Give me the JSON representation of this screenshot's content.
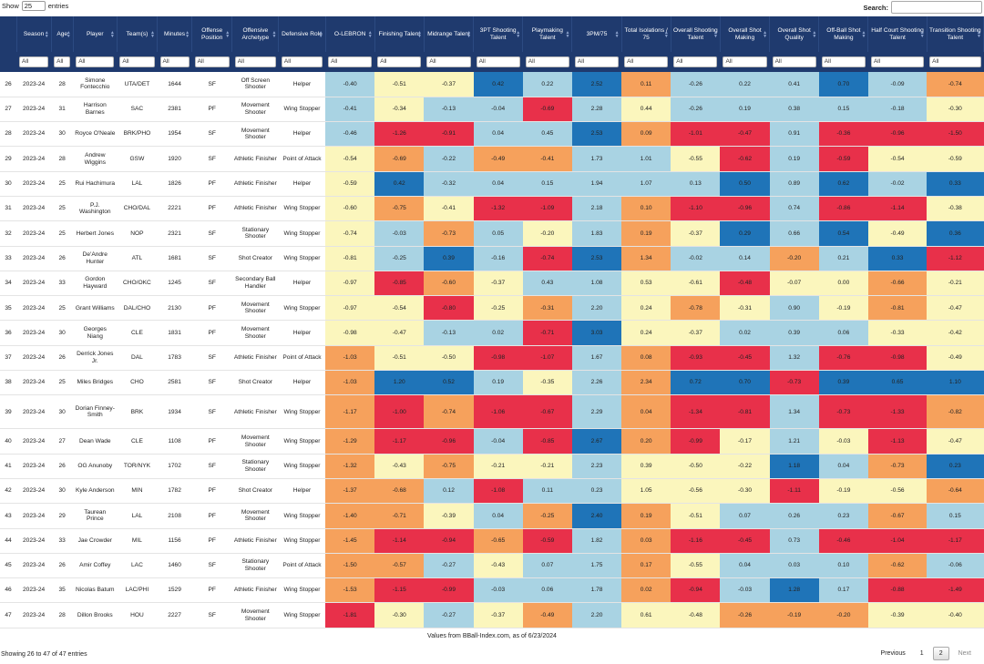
{
  "controls": {
    "show_label": "Show",
    "page_size": "25",
    "entries_label": "entries",
    "search_label": "Search:",
    "search_value": ""
  },
  "columns": [
    "Season",
    "Age",
    "Player",
    "Team(s)",
    "Minutes",
    "Offense Position",
    "Offensive Archetype",
    "Defensive Role",
    "O-LEBRON",
    "Finishing Talent",
    "Midrange Talent",
    "3PT Shooting Talent",
    "Playmaking Talent",
    "3PM/75",
    "Total Isolations / 75",
    "Overall Shooting Talent",
    "Overall Shot Making",
    "Overall Shot Quality",
    "Off-Ball Shot Making",
    "Half Court Shooting Talent",
    "Transition Shooting Talent"
  ],
  "filter_value": "All",
  "rows": [
    {
      "idx": "26",
      "season": "2023-24",
      "age": "28",
      "player": "Simone Fontecchio",
      "team": "UTA/DET",
      "minutes": "1644",
      "pos": "SF",
      "arch": "Off Screen Shooter",
      "role": "Helper",
      "stats": [
        "-0.40",
        "-0.51",
        "-0.37",
        "0.42",
        "0.22",
        "2.52",
        "0.11",
        "-0.26",
        "0.22",
        "0.41",
        "0.70",
        "-0.09",
        "-0.74"
      ]
    },
    {
      "idx": "27",
      "season": "2023-24",
      "age": "31",
      "player": "Harrison Barnes",
      "team": "SAC",
      "minutes": "2381",
      "pos": "PF",
      "arch": "Movement Shooter",
      "role": "Wing Stopper",
      "stats": [
        "-0.41",
        "-0.34",
        "-0.13",
        "-0.04",
        "-0.69",
        "2.28",
        "0.44",
        "-0.26",
        "0.19",
        "0.38",
        "0.15",
        "-0.18",
        "-0.30"
      ]
    },
    {
      "idx": "28",
      "season": "2023-24",
      "age": "30",
      "player": "Royce O'Neale",
      "team": "BRK/PHO",
      "minutes": "1954",
      "pos": "SF",
      "arch": "Movement Shooter",
      "role": "Helper",
      "stats": [
        "-0.46",
        "-1.26",
        "-0.91",
        "0.04",
        "0.45",
        "2.53",
        "0.09",
        "-1.01",
        "-0.47",
        "0.91",
        "-0.36",
        "-0.96",
        "-1.50"
      ]
    },
    {
      "idx": "29",
      "season": "2023-24",
      "age": "28",
      "player": "Andrew Wiggins",
      "team": "GSW",
      "minutes": "1920",
      "pos": "SF",
      "arch": "Athletic Finisher",
      "role": "Point of Attack",
      "stats": [
        "-0.54",
        "-0.69",
        "-0.22",
        "-0.49",
        "-0.41",
        "1.73",
        "1.01",
        "-0.55",
        "-0.62",
        "0.19",
        "-0.59",
        "-0.54",
        "-0.59"
      ]
    },
    {
      "idx": "30",
      "season": "2023-24",
      "age": "25",
      "player": "Rui Hachimura",
      "team": "LAL",
      "minutes": "1826",
      "pos": "PF",
      "arch": "Athletic Finisher",
      "role": "Helper",
      "stats": [
        "-0.59",
        "0.42",
        "-0.32",
        "0.04",
        "0.15",
        "1.94",
        "1.07",
        "0.13",
        "0.50",
        "0.89",
        "0.62",
        "-0.02",
        "0.33"
      ]
    },
    {
      "idx": "31",
      "season": "2023-24",
      "age": "25",
      "player": "P.J. Washington",
      "team": "CHO/DAL",
      "minutes": "2221",
      "pos": "PF",
      "arch": "Athletic Finisher",
      "role": "Wing Stopper",
      "stats": [
        "-0.60",
        "-0.75",
        "-0.41",
        "-1.32",
        "-1.09",
        "2.18",
        "0.10",
        "-1.10",
        "-0.96",
        "0.74",
        "-0.86",
        "-1.14",
        "-0.38"
      ]
    },
    {
      "idx": "32",
      "season": "2023-24",
      "age": "25",
      "player": "Herbert Jones",
      "team": "NOP",
      "minutes": "2321",
      "pos": "SF",
      "arch": "Stationary Shooter",
      "role": "Wing Stopper",
      "stats": [
        "-0.74",
        "-0.03",
        "-0.73",
        "0.05",
        "-0.20",
        "1.83",
        "0.19",
        "-0.37",
        "0.29",
        "0.66",
        "0.54",
        "-0.49",
        "0.36"
      ]
    },
    {
      "idx": "33",
      "season": "2023-24",
      "age": "26",
      "player": "De'Andre Hunter",
      "team": "ATL",
      "minutes": "1681",
      "pos": "SF",
      "arch": "Shot Creator",
      "role": "Wing Stopper",
      "stats": [
        "-0.81",
        "-0.25",
        "0.39",
        "-0.16",
        "-0.74",
        "2.53",
        "1.34",
        "-0.02",
        "0.14",
        "-0.20",
        "0.21",
        "0.33",
        "-1.12"
      ]
    },
    {
      "idx": "34",
      "season": "2023-24",
      "age": "33",
      "player": "Gordon Hayward",
      "team": "CHO/OKC",
      "minutes": "1245",
      "pos": "SF",
      "arch": "Secondary Ball Handler",
      "role": "Helper",
      "stats": [
        "-0.97",
        "-0.85",
        "-0.60",
        "-0.37",
        "0.43",
        "1.08",
        "0.53",
        "-0.61",
        "-0.48",
        "-0.07",
        "0.00",
        "-0.66",
        "-0.21"
      ]
    },
    {
      "idx": "35",
      "season": "2023-24",
      "age": "25",
      "player": "Grant Williams",
      "team": "DAL/CHO",
      "minutes": "2130",
      "pos": "PF",
      "arch": "Movement Shooter",
      "role": "Wing Stopper",
      "stats": [
        "-0.97",
        "-0.54",
        "-0.80",
        "-0.25",
        "-0.31",
        "2.20",
        "0.24",
        "-0.78",
        "-0.31",
        "0.90",
        "-0.19",
        "-0.81",
        "-0.47"
      ]
    },
    {
      "idx": "36",
      "season": "2023-24",
      "age": "30",
      "player": "Georges Niang",
      "team": "CLE",
      "minutes": "1831",
      "pos": "PF",
      "arch": "Movement Shooter",
      "role": "Helper",
      "stats": [
        "-0.98",
        "-0.47",
        "-0.13",
        "0.02",
        "-0.71",
        "3.03",
        "0.24",
        "-0.37",
        "0.02",
        "0.39",
        "0.06",
        "-0.33",
        "-0.42"
      ]
    },
    {
      "idx": "37",
      "season": "2023-24",
      "age": "26",
      "player": "Derrick Jones Jr.",
      "team": "DAL",
      "minutes": "1783",
      "pos": "SF",
      "arch": "Athletic Finisher",
      "role": "Point of Attack",
      "stats": [
        "-1.03",
        "-0.51",
        "-0.50",
        "-0.98",
        "-1.07",
        "1.67",
        "0.08",
        "-0.93",
        "-0.45",
        "1.32",
        "-0.76",
        "-0.98",
        "-0.49"
      ]
    },
    {
      "idx": "38",
      "season": "2023-24",
      "age": "25",
      "player": "Miles Bridges",
      "team": "CHO",
      "minutes": "2581",
      "pos": "SF",
      "arch": "Shot Creator",
      "role": "Helper",
      "stats": [
        "-1.03",
        "1.20",
        "0.52",
        "0.19",
        "-0.35",
        "2.26",
        "2.34",
        "0.72",
        "0.70",
        "-0.73",
        "0.39",
        "0.65",
        "1.10"
      ]
    },
    {
      "idx": "39",
      "season": "2023-24",
      "age": "30",
      "player": "Dorian Finney-Smith",
      "team": "BRK",
      "minutes": "1934",
      "pos": "SF",
      "arch": "Athletic Finisher",
      "role": "Wing Stopper",
      "tall": true,
      "stats": [
        "-1.17",
        "-1.00",
        "-0.74",
        "-1.06",
        "-0.67",
        "2.29",
        "0.04",
        "-1.34",
        "-0.81",
        "1.34",
        "-0.73",
        "-1.33",
        "-0.82"
      ]
    },
    {
      "idx": "40",
      "season": "2023-24",
      "age": "27",
      "player": "Dean Wade",
      "team": "CLE",
      "minutes": "1108",
      "pos": "PF",
      "arch": "Movement Shooter",
      "role": "Wing Stopper",
      "stats": [
        "-1.29",
        "-1.17",
        "-0.96",
        "-0.04",
        "-0.85",
        "2.67",
        "0.20",
        "-0.99",
        "-0.17",
        "1.21",
        "-0.03",
        "-1.13",
        "-0.47"
      ]
    },
    {
      "idx": "41",
      "season": "2023-24",
      "age": "26",
      "player": "OG Anunoby",
      "team": "TOR/NYK",
      "minutes": "1702",
      "pos": "SF",
      "arch": "Stationary Shooter",
      "role": "Wing Stopper",
      "stats": [
        "-1.32",
        "-0.43",
        "-0.75",
        "-0.21",
        "-0.21",
        "2.23",
        "0.39",
        "-0.50",
        "-0.22",
        "1.18",
        "0.04",
        "-0.73",
        "0.23"
      ]
    },
    {
      "idx": "42",
      "season": "2023-24",
      "age": "30",
      "player": "Kyle Anderson",
      "team": "MIN",
      "minutes": "1782",
      "pos": "PF",
      "arch": "Shot Creator",
      "role": "Helper",
      "stats": [
        "-1.37",
        "-0.68",
        "0.12",
        "-1.08",
        "0.11",
        "0.23",
        "1.05",
        "-0.56",
        "-0.30",
        "-1.11",
        "-0.19",
        "-0.56",
        "-0.64"
      ]
    },
    {
      "idx": "43",
      "season": "2023-24",
      "age": "29",
      "player": "Taurean Prince",
      "team": "LAL",
      "minutes": "2108",
      "pos": "PF",
      "arch": "Movement Shooter",
      "role": "Wing Stopper",
      "stats": [
        "-1.40",
        "-0.71",
        "-0.39",
        "0.04",
        "-0.25",
        "2.40",
        "0.19",
        "-0.51",
        "0.07",
        "0.26",
        "0.23",
        "-0.67",
        "0.15"
      ]
    },
    {
      "idx": "44",
      "season": "2023-24",
      "age": "33",
      "player": "Jae Crowder",
      "team": "MIL",
      "minutes": "1156",
      "pos": "PF",
      "arch": "Athletic Finisher",
      "role": "Wing Stopper",
      "stats": [
        "-1.45",
        "-1.14",
        "-0.94",
        "-0.65",
        "-0.59",
        "1.82",
        "0.03",
        "-1.16",
        "-0.45",
        "0.73",
        "-0.46",
        "-1.04",
        "-1.17"
      ]
    },
    {
      "idx": "45",
      "season": "2023-24",
      "age": "26",
      "player": "Amir Coffey",
      "team": "LAC",
      "minutes": "1460",
      "pos": "SF",
      "arch": "Stationary Shooter",
      "role": "Point of Attack",
      "stats": [
        "-1.50",
        "-0.57",
        "-0.27",
        "-0.43",
        "0.07",
        "1.75",
        "0.17",
        "-0.55",
        "0.04",
        "0.03",
        "0.10",
        "-0.62",
        "-0.06"
      ]
    },
    {
      "idx": "46",
      "season": "2023-24",
      "age": "35",
      "player": "Nicolas Batum",
      "team": "LAC/PHI",
      "minutes": "1529",
      "pos": "PF",
      "arch": "Athletic Finisher",
      "role": "Wing Stopper",
      "stats": [
        "-1.53",
        "-1.15",
        "-0.99",
        "-0.03",
        "0.06",
        "1.78",
        "0.02",
        "-0.94",
        "-0.03",
        "1.28",
        "0.17",
        "-0.88",
        "-1.49"
      ]
    },
    {
      "idx": "47",
      "season": "2023-24",
      "age": "28",
      "player": "Dillon Brooks",
      "team": "HOU",
      "minutes": "2227",
      "pos": "SF",
      "arch": "Movement Shooter",
      "role": "Wing Stopper",
      "stats": [
        "-1.81",
        "-0.30",
        "-0.27",
        "-0.37",
        "-0.49",
        "2.20",
        "0.61",
        "-0.48",
        "-0.26",
        "-0.19",
        "-0.20",
        "-0.39",
        "-0.40"
      ]
    }
  ],
  "cell_colors": [
    [
      "lb",
      "y",
      "y",
      "db",
      "lb",
      "db",
      "o",
      "lb",
      "lb",
      "lb",
      "db",
      "lb",
      "o"
    ],
    [
      "lb",
      "y",
      "lb",
      "lb",
      "r",
      "lb",
      "y",
      "lb",
      "lb",
      "lb",
      "lb",
      "lb",
      "y"
    ],
    [
      "lb",
      "r",
      "r",
      "lb",
      "lb",
      "db",
      "o",
      "r",
      "r",
      "lb",
      "r",
      "r",
      "r"
    ],
    [
      "y",
      "o",
      "lb",
      "o",
      "o",
      "lb",
      "lb",
      "y",
      "r",
      "lb",
      "r",
      "y",
      "y"
    ],
    [
      "y",
      "db",
      "lb",
      "lb",
      "lb",
      "lb",
      "lb",
      "lb",
      "db",
      "lb",
      "db",
      "lb",
      "db"
    ],
    [
      "y",
      "o",
      "y",
      "r",
      "r",
      "lb",
      "o",
      "r",
      "r",
      "lb",
      "r",
      "r",
      "y"
    ],
    [
      "y",
      "lb",
      "o",
      "lb",
      "y",
      "lb",
      "o",
      "y",
      "db",
      "lb",
      "db",
      "y",
      "db"
    ],
    [
      "y",
      "lb",
      "db",
      "lb",
      "r",
      "db",
      "o",
      "lb",
      "lb",
      "o",
      "lb",
      "db",
      "r"
    ],
    [
      "y",
      "r",
      "o",
      "y",
      "lb",
      "lb",
      "y",
      "y",
      "r",
      "y",
      "y",
      "o",
      "y"
    ],
    [
      "y",
      "y",
      "r",
      "y",
      "o",
      "lb",
      "y",
      "o",
      "y",
      "lb",
      "y",
      "o",
      "y"
    ],
    [
      "y",
      "y",
      "lb",
      "lb",
      "r",
      "db",
      "y",
      "y",
      "lb",
      "lb",
      "lb",
      "y",
      "y"
    ],
    [
      "o",
      "y",
      "y",
      "r",
      "r",
      "lb",
      "o",
      "r",
      "r",
      "lb",
      "r",
      "r",
      "y"
    ],
    [
      "o",
      "db",
      "db",
      "lb",
      "y",
      "lb",
      "o",
      "db",
      "db",
      "r",
      "db",
      "db",
      "db"
    ],
    [
      "o",
      "r",
      "o",
      "r",
      "r",
      "lb",
      "o",
      "r",
      "r",
      "lb",
      "r",
      "r",
      "o"
    ],
    [
      "o",
      "r",
      "r",
      "lb",
      "r",
      "db",
      "o",
      "r",
      "y",
      "lb",
      "y",
      "r",
      "y"
    ],
    [
      "o",
      "y",
      "o",
      "y",
      "y",
      "lb",
      "y",
      "y",
      "y",
      "db",
      "lb",
      "o",
      "db"
    ],
    [
      "o",
      "o",
      "lb",
      "r",
      "lb",
      "lb",
      "y",
      "y",
      "y",
      "r",
      "y",
      "y",
      "o"
    ],
    [
      "o",
      "o",
      "y",
      "lb",
      "o",
      "db",
      "o",
      "y",
      "lb",
      "lb",
      "lb",
      "o",
      "lb"
    ],
    [
      "o",
      "r",
      "r",
      "o",
      "r",
      "lb",
      "o",
      "r",
      "r",
      "lb",
      "r",
      "r",
      "r"
    ],
    [
      "o",
      "o",
      "lb",
      "y",
      "lb",
      "lb",
      "o",
      "y",
      "lb",
      "lb",
      "lb",
      "o",
      "lb"
    ],
    [
      "o",
      "r",
      "r",
      "lb",
      "lb",
      "lb",
      "o",
      "r",
      "lb",
      "db",
      "lb",
      "r",
      "r"
    ],
    [
      "r",
      "y",
      "lb",
      "y",
      "o",
      "lb",
      "y",
      "y",
      "o",
      "o",
      "o",
      "y",
      "y"
    ]
  ],
  "caption": "Values from BBall-Index.com, as of 6/23/2024",
  "footer": {
    "info": "Showing 26 to 47 of 47 entries",
    "prev": "Previous",
    "pages": [
      "1",
      "2"
    ],
    "next": "Next"
  }
}
